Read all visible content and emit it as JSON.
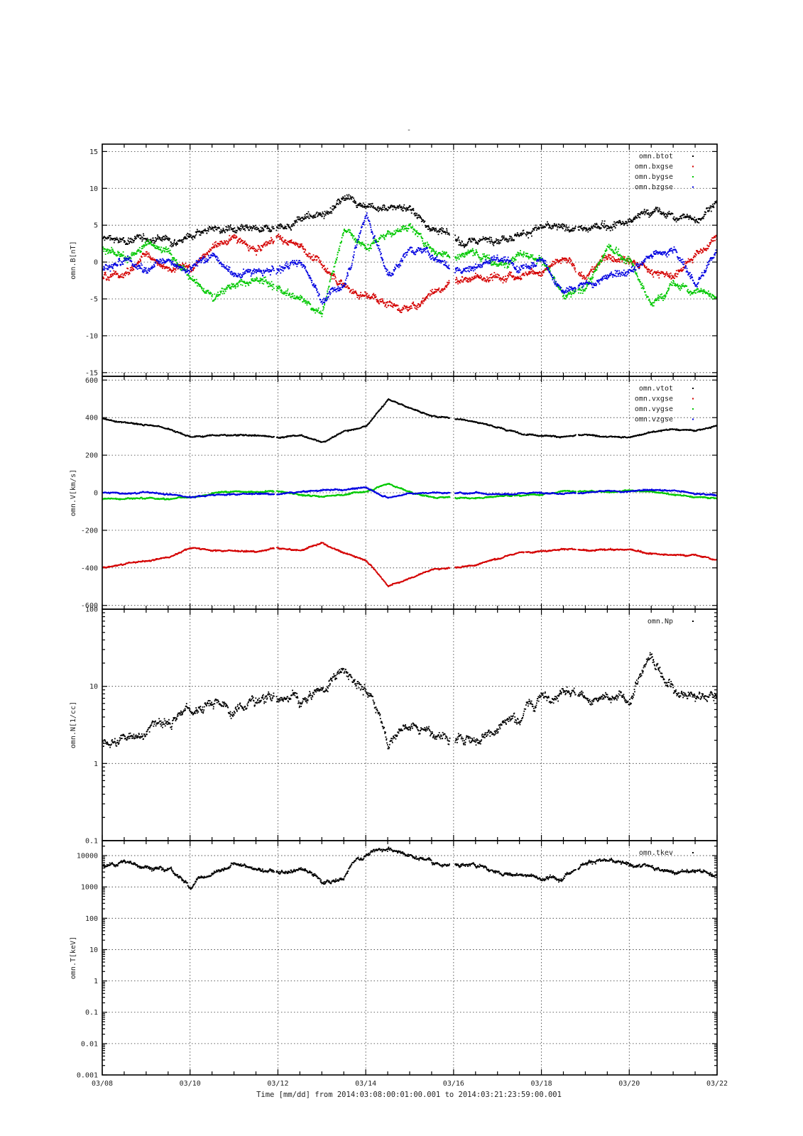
{
  "figure": {
    "title": "-",
    "xlabel": "Time [mm/dd]  from 2014:03:08:00:01:00.001  to  2014:03:21:23:59:00.001"
  },
  "chart_data": [
    {
      "type": "scatter",
      "ylabel": "omn.B[nT]",
      "ylim": [
        -15.5,
        16
      ],
      "yscale": "linear",
      "yticks": [
        -15,
        -10,
        -5,
        0,
        5,
        10,
        15
      ],
      "xlim": [
        0,
        14
      ],
      "xticks": [
        "03/08",
        "03/10",
        "03/12",
        "03/14",
        "03/16",
        "03/18",
        "03/20",
        "03/22"
      ],
      "grid": true,
      "legend_position": "top-right",
      "series": [
        {
          "name": "omn.btot",
          "color": "#000000",
          "x": [
            0,
            0.5,
            1,
            1.5,
            2,
            2.5,
            3,
            3.5,
            4,
            4.5,
            5,
            5.5,
            6,
            6.5,
            7,
            7.5,
            8,
            8.5,
            9,
            9.5,
            10,
            10.5,
            11,
            11.5,
            12,
            12.5,
            13,
            13.5,
            14
          ],
          "y": [
            3.2,
            3.0,
            3.4,
            3.2,
            3.6,
            4.5,
            4.4,
            4.2,
            4.9,
            5.8,
            6.6,
            8.8,
            7.8,
            7.2,
            7.6,
            4.5,
            3.2,
            2.9,
            3.4,
            3.8,
            4.6,
            4.6,
            4.4,
            5.2,
            5.6,
            7.0,
            6.2,
            6.0,
            8.5
          ]
        },
        {
          "name": "omn.bxgse",
          "color": "#d40000",
          "x": [
            0,
            0.5,
            1,
            1.5,
            2,
            2.5,
            3,
            3.5,
            4,
            4.5,
            5,
            5.5,
            6,
            6.5,
            7,
            7.5,
            8,
            8.5,
            9,
            9.5,
            10,
            10.5,
            11,
            11.5,
            12,
            12.5,
            13,
            13.5,
            14
          ],
          "y": [
            -2,
            -1.5,
            1,
            -0.5,
            -1,
            2,
            3,
            1.5,
            3.5,
            2.5,
            -0.5,
            -3,
            -4.5,
            -5.5,
            -6.5,
            -4,
            -2,
            -2,
            -2,
            -1.5,
            -1,
            0.5,
            -2,
            1,
            0.5,
            -1,
            -2,
            1,
            4
          ]
        },
        {
          "name": "omn.bygse",
          "color": "#00c800",
          "x": [
            0,
            0.5,
            1,
            1.5,
            2,
            2.5,
            3,
            3.5,
            4,
            4.5,
            5,
            5.5,
            6,
            6.5,
            7,
            7.5,
            8,
            8.5,
            9,
            9.5,
            10,
            10.5,
            11,
            11.5,
            12,
            12.5,
            13,
            13.5,
            14
          ],
          "y": [
            2,
            0.5,
            2.5,
            2,
            -2,
            -4.5,
            -3,
            -2.5,
            -3.5,
            -5,
            -7,
            5,
            2,
            4,
            5,
            1.5,
            1,
            1.5,
            -0.5,
            1.5,
            0.5,
            -5,
            -3.5,
            2,
            0.5,
            -6,
            -3,
            -4,
            -4
          ]
        },
        {
          "name": "omn.bzgse",
          "color": "#0000e0",
          "x": [
            0,
            0.5,
            1,
            1.5,
            2,
            2.5,
            3,
            3.5,
            4,
            4.5,
            5,
            5.5,
            6,
            6.5,
            7,
            7.5,
            8,
            8.5,
            9,
            9.5,
            10,
            10.5,
            11,
            11.5,
            12,
            12.5,
            13,
            13.5,
            14
          ],
          "y": [
            -1,
            0.5,
            -1,
            0.5,
            -1,
            1,
            -2,
            -1.5,
            -1,
            0.5,
            -5,
            -3,
            7,
            -2,
            2,
            1,
            -1,
            -0.5,
            0.5,
            -0.5,
            0.5,
            -4,
            -3,
            -2,
            -1,
            1,
            2,
            -3,
            2
          ]
        }
      ]
    },
    {
      "type": "scatter",
      "ylabel": "omn.V[km/s]",
      "ylim": [
        -620,
        620
      ],
      "yscale": "linear",
      "yticks": [
        -600,
        -400,
        -200,
        0,
        200,
        400,
        600
      ],
      "xlim": [
        0,
        14
      ],
      "grid": true,
      "legend_position": "top-right",
      "series": [
        {
          "name": "omn.vtot",
          "color": "#000000",
          "x": [
            0,
            0.5,
            1,
            1.5,
            2,
            2.5,
            3,
            3.5,
            4,
            4.5,
            5,
            5.5,
            6,
            6.5,
            7,
            7.5,
            8,
            8.5,
            9,
            9.5,
            10,
            10.5,
            11,
            11.5,
            12,
            12.5,
            13,
            13.5,
            14
          ],
          "y": [
            400,
            375,
            365,
            345,
            300,
            310,
            310,
            310,
            295,
            310,
            270,
            330,
            360,
            500,
            455,
            410,
            400,
            380,
            350,
            320,
            310,
            300,
            310,
            300,
            300,
            325,
            340,
            335,
            360
          ]
        },
        {
          "name": "omn.vxgse",
          "color": "#d40000",
          "x": [
            0,
            0.5,
            1,
            1.5,
            2,
            2.5,
            3,
            3.5,
            4,
            4.5,
            5,
            5.5,
            6,
            6.5,
            7,
            7.5,
            8,
            8.5,
            9,
            9.5,
            10,
            10.5,
            11,
            11.5,
            12,
            12.5,
            13,
            13.5,
            14
          ],
          "y": [
            -395,
            -375,
            -360,
            -340,
            -290,
            -305,
            -305,
            -310,
            -290,
            -305,
            -265,
            -320,
            -355,
            -495,
            -450,
            -405,
            -395,
            -380,
            -345,
            -315,
            -305,
            -295,
            -305,
            -300,
            -300,
            -320,
            -330,
            -330,
            -355
          ]
        },
        {
          "name": "omn.vygse",
          "color": "#00c800",
          "x": [
            0,
            0.5,
            1,
            1.5,
            2,
            2.5,
            3,
            3.5,
            4,
            4.5,
            5,
            5.5,
            6,
            6.5,
            7,
            7.5,
            8,
            8.5,
            9,
            9.5,
            10,
            10.5,
            11,
            11.5,
            12,
            12.5,
            13,
            13.5,
            14
          ],
          "y": [
            -30,
            -25,
            -25,
            -30,
            -20,
            0,
            10,
            5,
            10,
            -10,
            -15,
            -5,
            10,
            55,
            5,
            -20,
            -25,
            -25,
            -15,
            -10,
            -5,
            15,
            10,
            5,
            15,
            10,
            -10,
            -20,
            -25
          ]
        },
        {
          "name": "omn.vzgse",
          "color": "#0000e0",
          "x": [
            0,
            0.5,
            1,
            1.5,
            2,
            2.5,
            3,
            3.5,
            4,
            4.5,
            5,
            5.5,
            6,
            6.5,
            7,
            7.5,
            8,
            8.5,
            9,
            9.5,
            10,
            10.5,
            11,
            11.5,
            12,
            12.5,
            13,
            13.5,
            14
          ],
          "y": [
            5,
            0,
            5,
            -5,
            -20,
            -10,
            -5,
            0,
            -5,
            10,
            15,
            20,
            30,
            -25,
            0,
            5,
            0,
            5,
            -5,
            0,
            5,
            0,
            5,
            10,
            10,
            20,
            15,
            0,
            -10
          ]
        }
      ]
    },
    {
      "type": "scatter",
      "ylabel": "omn.N[1/cc]",
      "ylim": [
        0.1,
        100
      ],
      "yscale": "log",
      "yticks": [
        "0.1",
        "1",
        "10",
        "100"
      ],
      "xlim": [
        0,
        14
      ],
      "grid": true,
      "legend_position": "top-right",
      "series": [
        {
          "name": "omn.Np",
          "color": "#000000",
          "x": [
            0,
            0.5,
            1,
            1.5,
            2,
            2.5,
            3,
            3.5,
            4,
            4.5,
            5,
            5.5,
            6,
            6.5,
            7,
            7.5,
            8,
            8.5,
            9,
            9.5,
            10,
            10.5,
            11,
            11.5,
            12,
            12.5,
            13,
            13.5,
            14
          ],
          "y": [
            1.7,
            2.3,
            2.7,
            3.5,
            5,
            6.5,
            5,
            7,
            7.5,
            7,
            9,
            15,
            8,
            2,
            3,
            2.5,
            2,
            2.2,
            3,
            4.5,
            7,
            10,
            8,
            7,
            7,
            22,
            10,
            8,
            8
          ]
        }
      ]
    },
    {
      "type": "scatter",
      "ylabel": "omn.T[keV]",
      "ylim": [
        0.001,
        30000
      ],
      "yscale": "log",
      "yticks": [
        "0.001",
        "0.01",
        "0.1",
        "1",
        "10",
        "100",
        "1000",
        "10000"
      ],
      "xlim": [
        0,
        14
      ],
      "xticks": [
        "03/08",
        "03/10",
        "03/12",
        "03/14",
        "03/16",
        "03/18",
        "03/20",
        "03/22"
      ],
      "grid": true,
      "legend_position": "top-right",
      "series": [
        {
          "name": "omn.tkev",
          "color": "#000000",
          "x": [
            0,
            0.5,
            1,
            1.5,
            2,
            2.5,
            3,
            3.5,
            4,
            4.5,
            5,
            5.5,
            6,
            6.5,
            7,
            7.5,
            8,
            8.5,
            9,
            9.5,
            10,
            10.5,
            11,
            11.5,
            12,
            12.5,
            13,
            13.5,
            14
          ],
          "y": [
            5000,
            6000,
            5000,
            3500,
            1000,
            3000,
            6000,
            3500,
            3200,
            3800,
            1500,
            2000,
            12000,
            20000,
            11000,
            6000,
            5500,
            5000,
            3000,
            2500,
            2000,
            2000,
            7000,
            6500,
            5000,
            4500,
            3000,
            3000,
            2500
          ]
        }
      ]
    }
  ]
}
